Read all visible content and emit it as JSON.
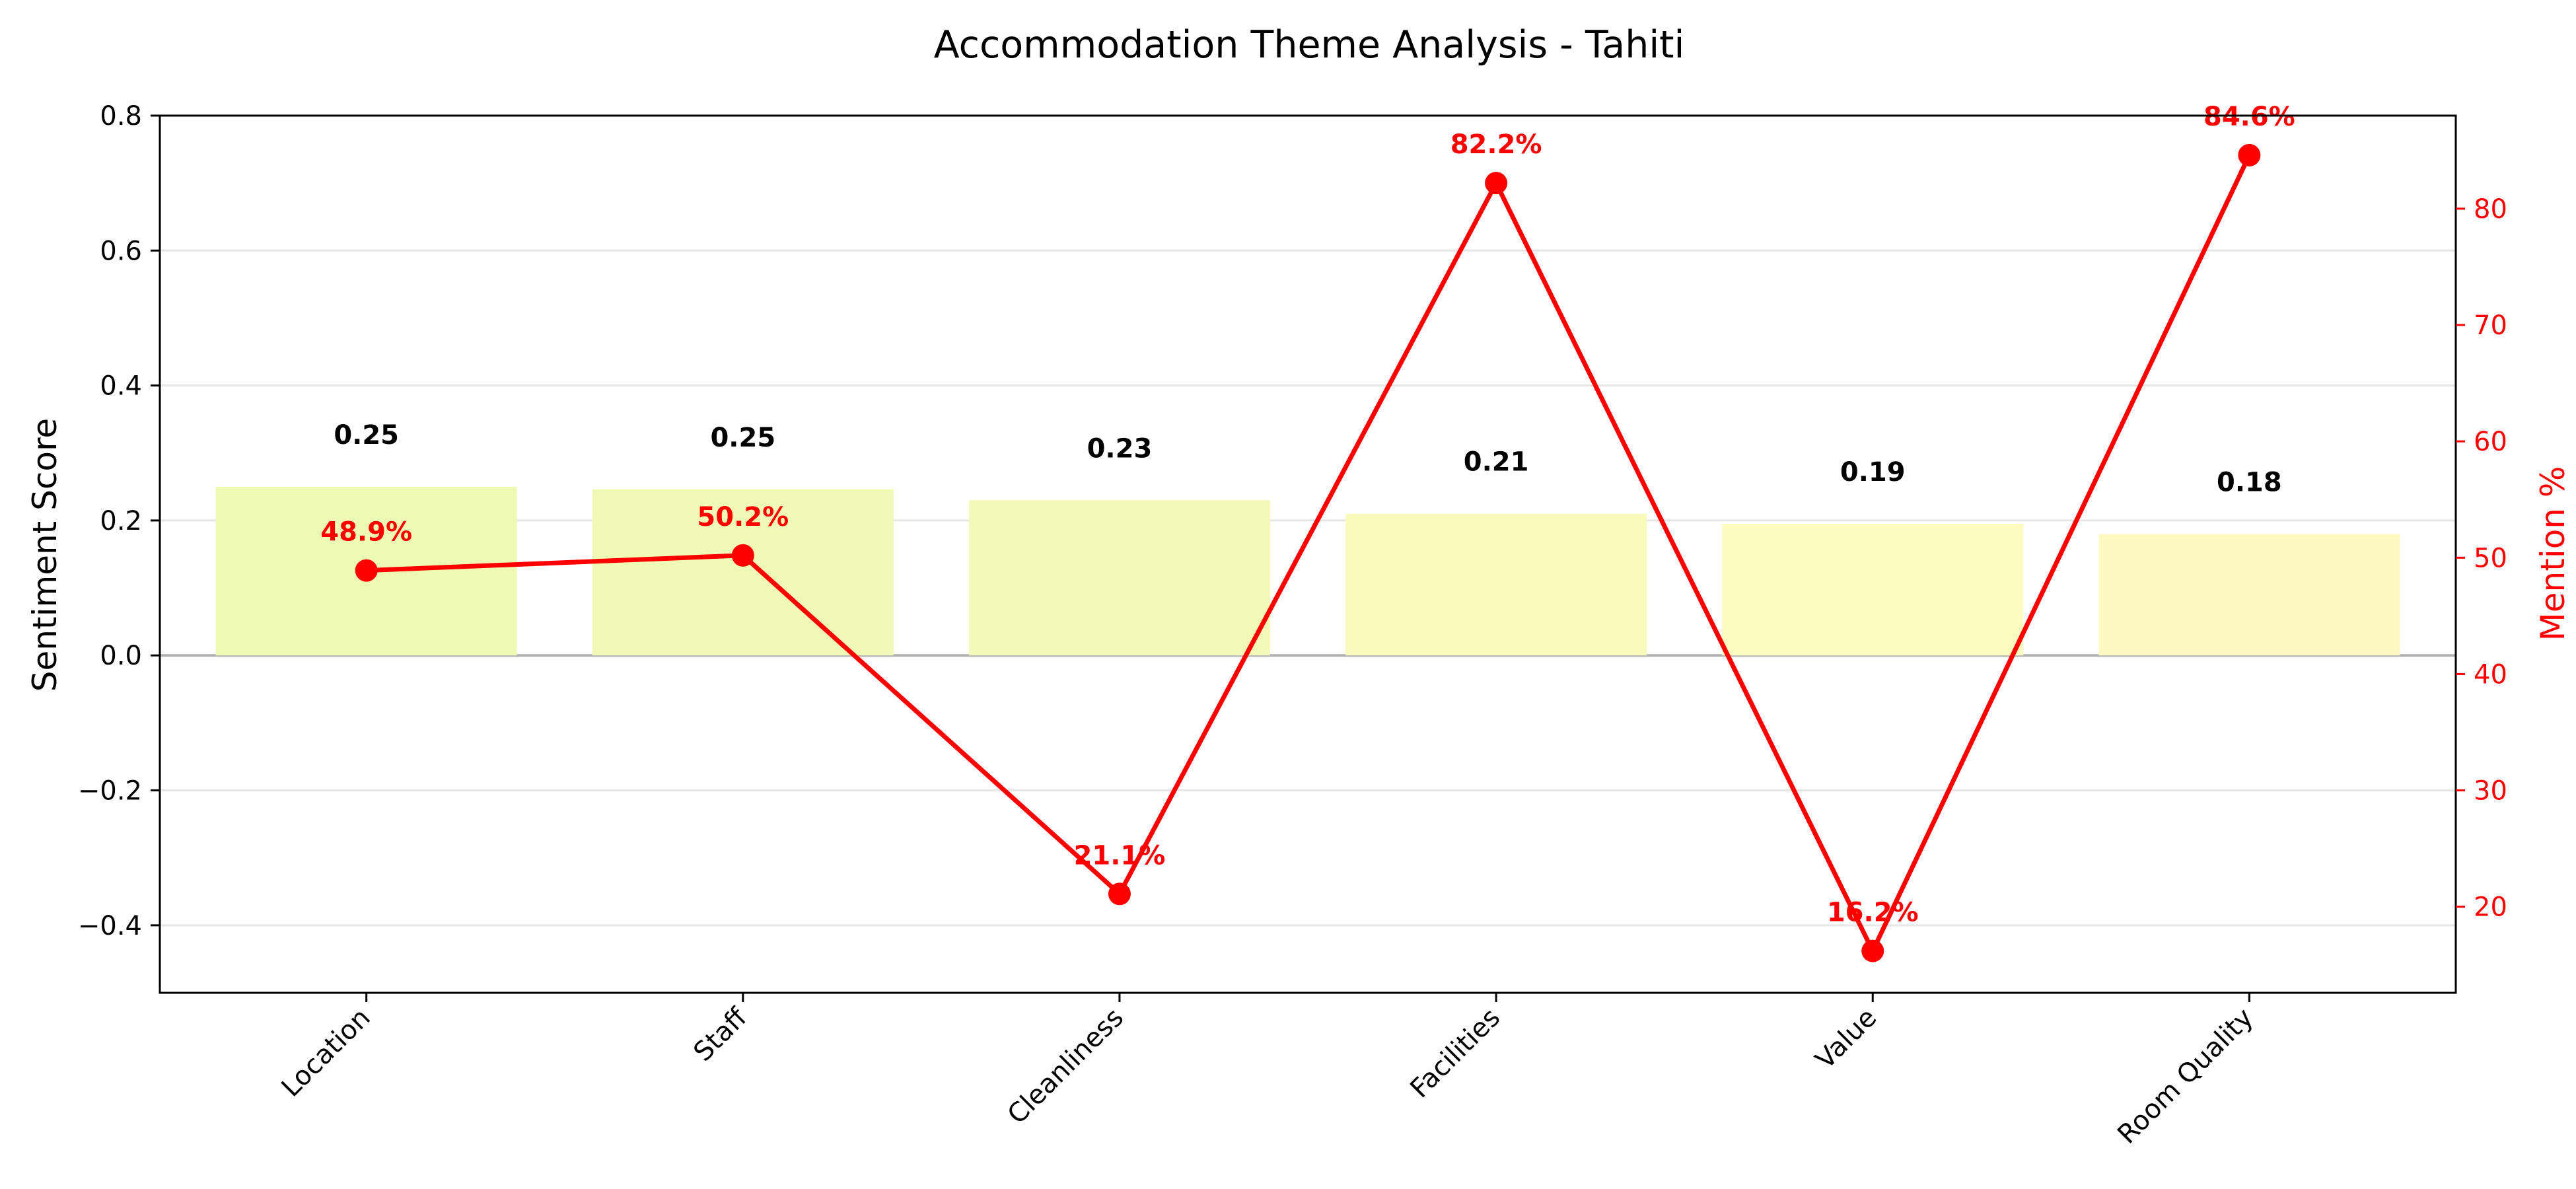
{
  "chart_data": {
    "type": "bar",
    "title": "Accommodation Theme Analysis - Tahiti",
    "xlabel": "",
    "ylabel": "Sentiment Score",
    "ylabel_right": "Mention %",
    "categories": [
      "Location",
      "Staff",
      "Cleanliness",
      "Facilities",
      "Value",
      "Room Quality"
    ],
    "ylim": [
      -0.5,
      0.8
    ],
    "ylim_right": [
      12.6,
      88.0
    ],
    "yticks": [
      -0.4,
      -0.2,
      0.0,
      0.2,
      0.4,
      0.6,
      0.8
    ],
    "yticks_right": [
      20,
      30,
      40,
      50,
      60,
      70,
      80
    ],
    "grid": true,
    "series": [
      {
        "name": "Sentiment Score",
        "type": "bar",
        "values": [
          0.25,
          0.246,
          0.23,
          0.21,
          0.195,
          0.18
        ],
        "labels": [
          "0.25",
          "0.25",
          "0.23",
          "0.21",
          "0.19",
          "0.18"
        ],
        "colors": [
          "#eef9b4",
          "#f0f9b5",
          "#f3fab8",
          "#f9fbbd",
          "#fdfbc0",
          "#fef9c2"
        ]
      },
      {
        "name": "Mention %",
        "type": "line",
        "axis": "right",
        "values": [
          48.9,
          50.2,
          21.1,
          82.2,
          16.2,
          84.6
        ],
        "labels": [
          "48.9%",
          "50.2%",
          "21.1%",
          "82.2%",
          "16.2%",
          "84.6%"
        ],
        "color": "#ff0000"
      }
    ],
    "colors": {
      "axis": "#000000",
      "right_axis": "#ff0000",
      "grid": "#e6e6e6",
      "zero_line": "#b0b0b0"
    }
  }
}
